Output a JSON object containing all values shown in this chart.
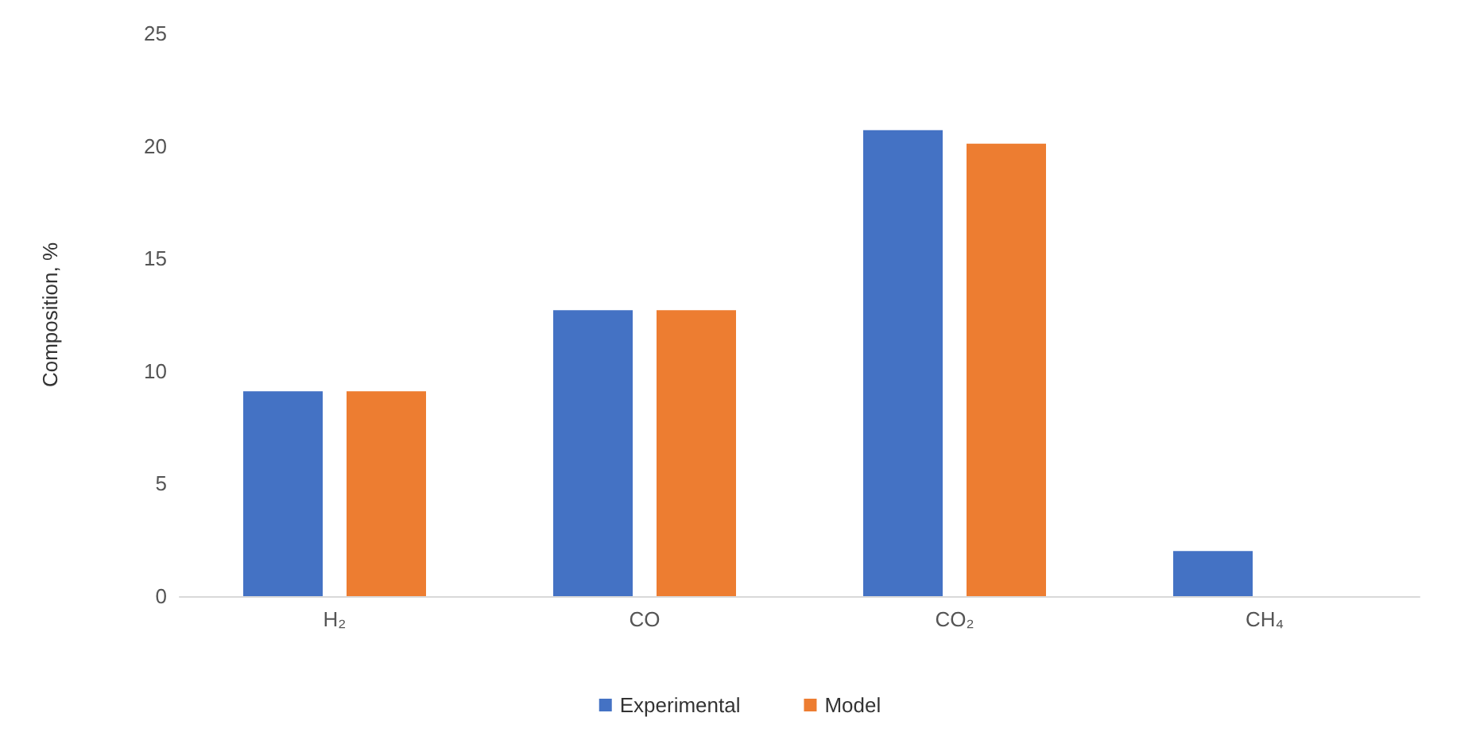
{
  "chart_data": {
    "type": "bar",
    "ylabel": "Composition, %",
    "categories": [
      "H₂",
      "CO",
      "CO₂",
      "CH₄"
    ],
    "series": [
      {
        "name": "Experimental",
        "color": "#4472c4",
        "values": [
          9.1,
          12.7,
          20.7,
          2.0
        ]
      },
      {
        "name": "Model",
        "color": "#ed7d31",
        "values": [
          9.1,
          12.7,
          20.1,
          null
        ]
      }
    ],
    "ylim": [
      0,
      25
    ],
    "yticks": [
      0,
      5,
      10,
      15,
      20,
      25
    ],
    "grid": false,
    "legend": "bottom"
  }
}
